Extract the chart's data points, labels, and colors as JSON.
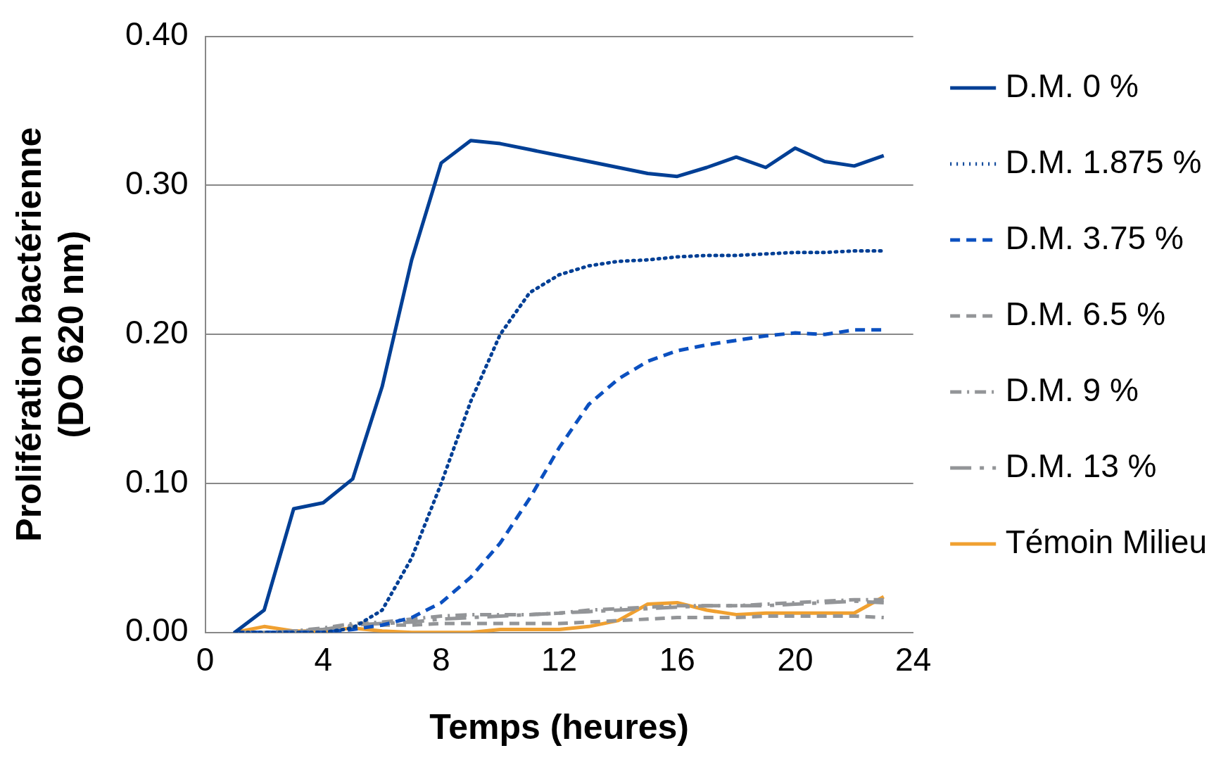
{
  "chart_data": {
    "type": "line",
    "xlabel": "Temps (heures)",
    "ylabel": "Prolifération bactérienne\n(DO 620 nm)",
    "x": [
      1,
      2,
      3,
      4,
      5,
      6,
      7,
      8,
      9,
      10,
      11,
      12,
      13,
      14,
      15,
      16,
      17,
      18,
      19,
      20,
      21,
      22,
      23
    ],
    "xlim": [
      0,
      24
    ],
    "xticks": [
      0,
      4,
      8,
      12,
      16,
      20,
      24
    ],
    "ylim": [
      0,
      0.4
    ],
    "yticks": [
      {
        "value": 0,
        "label": "0.00"
      },
      {
        "value": 0.1,
        "label": "0.10"
      },
      {
        "value": 0.2,
        "label": "0.20"
      },
      {
        "value": 0.3,
        "label": "0.30"
      },
      {
        "value": 0.4,
        "label": "0.40"
      }
    ],
    "grid": "y",
    "legend": "right",
    "marker": "none",
    "series": [
      {
        "name": "D.M. 0 %",
        "color": "#003f95",
        "line_style": "solid",
        "values": [
          0,
          0.015,
          0.083,
          0.087,
          0.103,
          0.165,
          0.25,
          0.315,
          0.33,
          0.328,
          0.324,
          0.32,
          0.316,
          0.312,
          0.308,
          0.306,
          0.312,
          0.319,
          0.312,
          0.325,
          0.316,
          0.313,
          0.32
        ]
      },
      {
        "name": "D.M. 1.875 %",
        "color": "#003f95",
        "line_style": "dotted",
        "values": [
          0,
          0,
          0,
          0,
          0.003,
          0.015,
          0.05,
          0.1,
          0.155,
          0.2,
          0.228,
          0.24,
          0.246,
          0.249,
          0.25,
          0.252,
          0.253,
          0.253,
          0.254,
          0.255,
          0.255,
          0.256,
          0.256
        ]
      },
      {
        "name": "D.M. 3.75 %",
        "color": "#0b50c0",
        "line_style": "dashed",
        "values": [
          0,
          0,
          0,
          0,
          0.002,
          0.005,
          0.01,
          0.02,
          0.037,
          0.06,
          0.09,
          0.124,
          0.153,
          0.17,
          0.182,
          0.189,
          0.193,
          0.196,
          0.199,
          0.201,
          0.2,
          0.203,
          0.203
        ]
      },
      {
        "name": "D.M. 6.5 %",
        "color": "#939598",
        "line_style": "dashed",
        "values": [
          0,
          0,
          0,
          0.002,
          0.004,
          0.005,
          0.005,
          0.006,
          0.006,
          0.006,
          0.006,
          0.006,
          0.007,
          0.008,
          0.009,
          0.01,
          0.01,
          0.01,
          0.011,
          0.011,
          0.011,
          0.011,
          0.01
        ]
      },
      {
        "name": "D.M. 9 %",
        "color": "#939598",
        "line_style": "dashdot",
        "values": [
          0,
          0,
          0.001,
          0.003,
          0.006,
          0.007,
          0.009,
          0.011,
          0.012,
          0.012,
          0.012,
          0.013,
          0.015,
          0.016,
          0.017,
          0.018,
          0.018,
          0.018,
          0.019,
          0.02,
          0.021,
          0.022,
          0.022
        ]
      },
      {
        "name": "D.M. 13 %",
        "color": "#939598",
        "line_style": "longdash",
        "values": [
          0,
          0,
          0.001,
          0.002,
          0.005,
          0.006,
          0.007,
          0.009,
          0.01,
          0.011,
          0.012,
          0.013,
          0.014,
          0.015,
          0.016,
          0.017,
          0.018,
          0.018,
          0.018,
          0.019,
          0.02,
          0.021,
          0.02
        ]
      },
      {
        "name": "Témoin Milieu",
        "color": "#f0a030",
        "line_style": "solid",
        "values": [
          0,
          0.004,
          0.001,
          0.001,
          0.003,
          0.001,
          0,
          0,
          0,
          0.002,
          0.002,
          0.002,
          0.004,
          0.008,
          0.019,
          0.02,
          0.015,
          0.012,
          0.013,
          0.013,
          0.013,
          0.013,
          0.024
        ]
      }
    ]
  }
}
